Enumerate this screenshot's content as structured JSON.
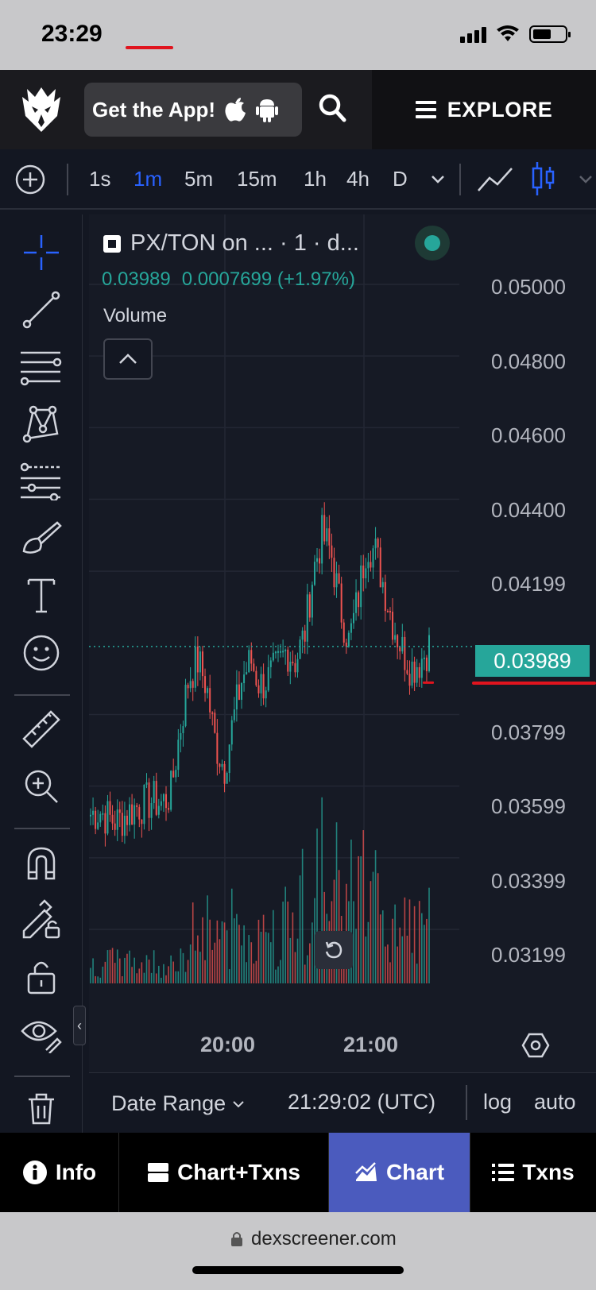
{
  "status_bar": {
    "time": "23:29"
  },
  "nav": {
    "get_app_label": "Get the App!",
    "explore_label": "EXPLORE"
  },
  "timeframes": {
    "items": [
      "1s",
      "1m",
      "5m",
      "15m",
      "1h",
      "4h",
      "D"
    ],
    "active": "1m"
  },
  "legend": {
    "title": "PX/TON on ... · 1 · d...",
    "close": "0.03989",
    "change": "0.0007699 (+1.97%)",
    "volume_label": "Volume"
  },
  "price_axis": {
    "ticks": [
      "0.05000",
      "0.04800",
      "0.04600",
      "0.04400",
      "0.04199",
      "0.03799",
      "0.03599",
      "0.03399",
      "0.03199"
    ],
    "current": "0.03989"
  },
  "time_axis": {
    "ticks": [
      "20:00",
      "21:00"
    ]
  },
  "chart_footer": {
    "date_range_label": "Date Range",
    "utc_time": "21:29:02 (UTC)",
    "log_label": "log",
    "auto_label": "auto"
  },
  "bottom_tabs": {
    "info": "Info",
    "chart_txns": "Chart+Txns",
    "chart": "Chart",
    "txns": "Txns"
  },
  "url": {
    "domain": "dexscreener.com"
  },
  "colors": {
    "up": "#26a69a",
    "down": "#ef5350",
    "accent": "#2962ff",
    "active_tab": "#4b5bbe"
  },
  "chart_data": {
    "type": "candlestick",
    "title": "PX/TON on ... · 1 · d...",
    "x_ticks": [
      "20:00",
      "21:00"
    ],
    "ylim": [
      0.031,
      0.051
    ],
    "close_series": [
      0.0352,
      0.0353,
      0.0351,
      0.035,
      0.0352,
      0.0354,
      0.0355,
      0.0356,
      0.0355,
      0.0358,
      0.0375,
      0.039,
      0.0395,
      0.0388,
      0.0372,
      0.0365,
      0.0378,
      0.039,
      0.0395,
      0.0388,
      0.039,
      0.0393,
      0.0398,
      0.0395,
      0.0402,
      0.042,
      0.043,
      0.0425,
      0.041,
      0.04,
      0.0412,
      0.0428,
      0.0425,
      0.0415,
      0.0405,
      0.0398,
      0.0393,
      0.0395,
      0.0399
    ],
    "last_price": 0.03989
  }
}
